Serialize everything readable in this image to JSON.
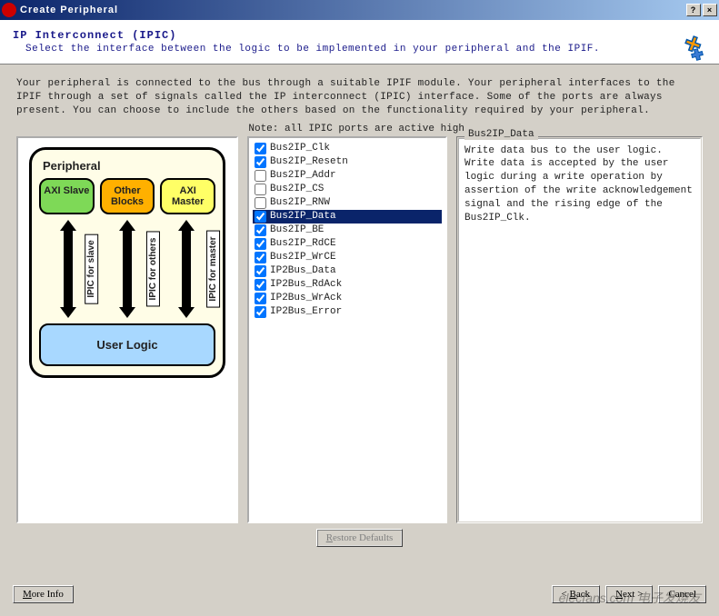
{
  "window": {
    "title": "Create Peripheral"
  },
  "header": {
    "title": "IP Interconnect (IPIC)",
    "subtitle": "Select the interface between the logic to be implemented in your peripheral and the IPIF."
  },
  "description": "Your peripheral is connected to the bus through a suitable IPIF module. Your peripheral interfaces to the IPIF through a set of signals called the IP interconnect (IPIC) interface. Some of the ports are always present. You can choose to include the others based on the functionality required by your peripheral.",
  "note": "Note: all IPIC ports are active high.",
  "diagram": {
    "peripheral_label": "Peripheral",
    "blocks": [
      {
        "label": "AXI Slave",
        "color": "#7ed957"
      },
      {
        "label": "Other Blocks",
        "color": "#ffb000"
      },
      {
        "label": "AXI Master",
        "color": "#ffff66"
      }
    ],
    "arrows": [
      "IPIC for slave",
      "IPIC for others",
      "IPIC for master"
    ],
    "user_logic": "User Logic"
  },
  "ports": [
    {
      "name": "Bus2IP_Clk",
      "checked": true,
      "selected": false
    },
    {
      "name": "Bus2IP_Resetn",
      "checked": true,
      "selected": false
    },
    {
      "name": "Bus2IP_Addr",
      "checked": false,
      "selected": false
    },
    {
      "name": "Bus2IP_CS",
      "checked": false,
      "selected": false
    },
    {
      "name": "Bus2IP_RNW",
      "checked": false,
      "selected": false
    },
    {
      "name": "Bus2IP_Data",
      "checked": true,
      "selected": true
    },
    {
      "name": "Bus2IP_BE",
      "checked": true,
      "selected": false
    },
    {
      "name": "Bus2IP_RdCE",
      "checked": true,
      "selected": false
    },
    {
      "name": "Bus2IP_WrCE",
      "checked": true,
      "selected": false
    },
    {
      "name": "IP2Bus_Data",
      "checked": true,
      "selected": false
    },
    {
      "name": "IP2Bus_RdAck",
      "checked": true,
      "selected": false
    },
    {
      "name": "IP2Bus_WrAck",
      "checked": true,
      "selected": false
    },
    {
      "name": "IP2Bus_Error",
      "checked": true,
      "selected": false
    }
  ],
  "desc_panel": {
    "legend": "Bus2IP_Data",
    "text": "Write data bus to the user logic. Write data is accepted by the user logic during a write operation by assertion of the write acknowledgement signal and the rising edge of the Bus2IP_Clk."
  },
  "buttons": {
    "restore": "Restore Defaults",
    "more_info": "More Info",
    "back": "Back",
    "next": "Next",
    "cancel": "Cancel"
  },
  "watermark": "elecfans.com 电子发烧友"
}
